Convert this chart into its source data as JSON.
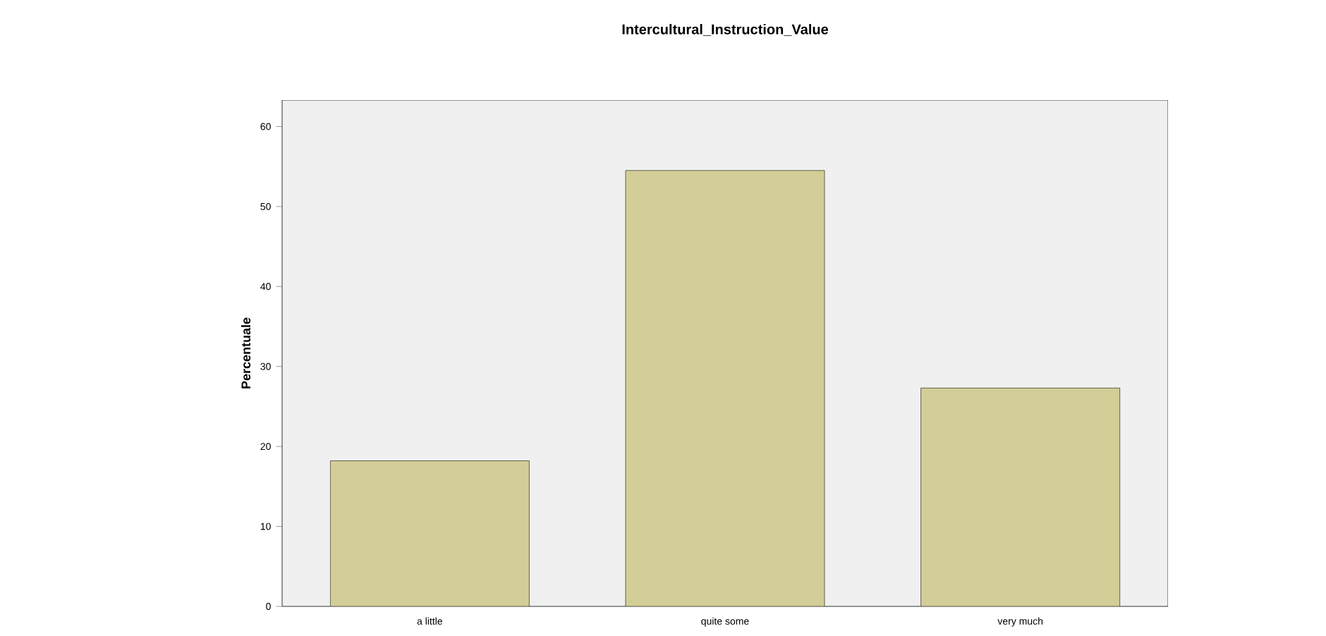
{
  "chart_data": {
    "type": "bar",
    "title": "Intercultural_Instruction_Value",
    "ylabel": "Percentuale",
    "categories": [
      "a little",
      "quite some",
      "very much"
    ],
    "values": [
      18.2,
      54.5,
      27.3
    ],
    "color": "#d3ce97",
    "ylim": [
      0,
      63.3
    ],
    "yticks": [
      0,
      10,
      20,
      30,
      40,
      50,
      60
    ]
  }
}
